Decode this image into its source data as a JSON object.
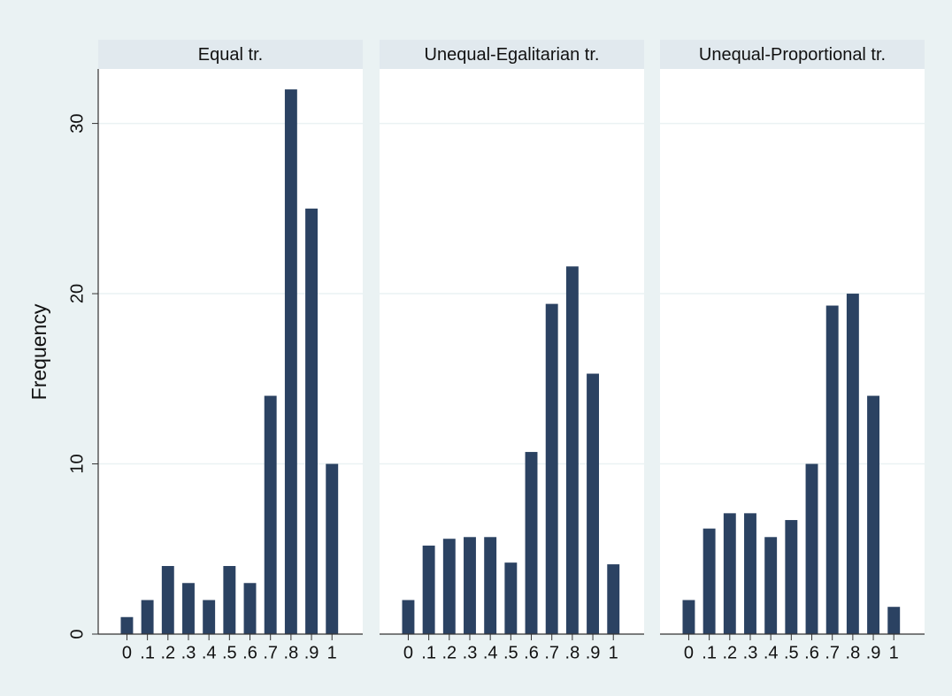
{
  "chart_data": [
    {
      "type": "bar",
      "title": "Equal tr.",
      "ylabel": "Frequency",
      "x": [
        0,
        0.1,
        0.2,
        0.3,
        0.4,
        0.5,
        0.6,
        0.7,
        0.8,
        0.9,
        1
      ],
      "values": [
        1,
        2,
        4,
        3,
        2,
        4,
        3,
        14,
        32,
        25,
        10
      ],
      "xlim": [
        -0.14,
        1.15
      ],
      "ylim": [
        0,
        33.2
      ],
      "xticks": [
        0,
        {
          "value": 0.1,
          "label": ".1"
        },
        {
          "value": 0.2,
          "label": ".2"
        },
        {
          "value": 0.3,
          "label": ".3"
        },
        {
          "value": 0.4,
          "label": ".4"
        },
        {
          "value": 0.5,
          "label": ".5"
        },
        {
          "value": 0.6,
          "label": ".6"
        },
        {
          "value": 0.7,
          "label": ".7"
        },
        {
          "value": 0.8,
          "label": ".8"
        },
        {
          "value": 0.9,
          "label": ".9"
        },
        1
      ],
      "yticks": [
        0,
        10,
        20,
        30
      ],
      "grid": true,
      "color": "#2b4262"
    },
    {
      "type": "bar",
      "title": "Unequal-Egalitarian tr.",
      "x": [
        0,
        0.1,
        0.2,
        0.3,
        0.4,
        0.5,
        0.6,
        0.7,
        0.8,
        0.9,
        1
      ],
      "values": [
        2,
        5.2,
        5.6,
        5.7,
        5.7,
        4.2,
        10.7,
        19.4,
        21.6,
        15.3,
        4.1
      ],
      "xlim": [
        -0.14,
        1.15
      ],
      "ylim": [
        0,
        33.2
      ],
      "xticks": [
        0,
        {
          "value": 0.1,
          "label": ".1"
        },
        {
          "value": 0.2,
          "label": ".2"
        },
        {
          "value": 0.3,
          "label": ".3"
        },
        {
          "value": 0.4,
          "label": ".4"
        },
        {
          "value": 0.5,
          "label": ".5"
        },
        {
          "value": 0.6,
          "label": ".6"
        },
        {
          "value": 0.7,
          "label": ".7"
        },
        {
          "value": 0.8,
          "label": ".8"
        },
        {
          "value": 0.9,
          "label": ".9"
        },
        1
      ],
      "yticks": [
        0,
        10,
        20,
        30
      ],
      "grid": true,
      "color": "#2b4262"
    },
    {
      "type": "bar",
      "title": "Unequal-Proportional tr.",
      "x": [
        0,
        0.1,
        0.2,
        0.3,
        0.4,
        0.5,
        0.6,
        0.7,
        0.8,
        0.9,
        1
      ],
      "values": [
        2,
        6.2,
        7.1,
        7.1,
        5.7,
        6.7,
        10,
        19.3,
        20,
        14,
        1.6
      ],
      "xlim": [
        -0.14,
        1.15
      ],
      "ylim": [
        0,
        33.2
      ],
      "xticks": [
        0,
        {
          "value": 0.1,
          "label": ".1"
        },
        {
          "value": 0.2,
          "label": ".2"
        },
        {
          "value": 0.3,
          "label": ".3"
        },
        {
          "value": 0.4,
          "label": ".4"
        },
        {
          "value": 0.5,
          "label": ".5"
        },
        {
          "value": 0.6,
          "label": ".6"
        },
        {
          "value": 0.7,
          "label": ".7"
        },
        {
          "value": 0.8,
          "label": ".8"
        },
        {
          "value": 0.9,
          "label": ".9"
        },
        1
      ],
      "yticks": [
        0,
        10,
        20,
        30
      ],
      "grid": true,
      "color": "#2b4262"
    }
  ]
}
